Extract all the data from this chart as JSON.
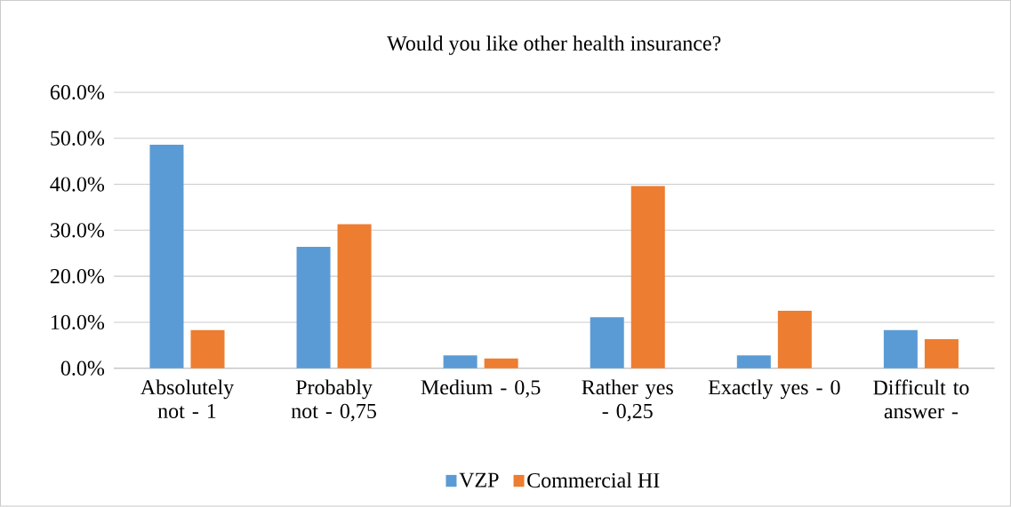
{
  "chart_data": {
    "type": "bar",
    "title": "Would you like other health insurance?",
    "categories": [
      "Absolutely not - 1",
      "Probably not - 0,75",
      "Medium - 0,5",
      "Rather yes - 0,25",
      "Exactly yes - 0",
      "Difficult to answer -"
    ],
    "series": [
      {
        "name": "VZP",
        "color": "#5b9bd5",
        "values": [
          48.6,
          26.4,
          2.8,
          11.1,
          2.8,
          8.3
        ]
      },
      {
        "name": "Commercial HI",
        "color": "#ed7d31",
        "values": [
          8.3,
          31.3,
          2.1,
          39.6,
          12.5,
          6.3
        ]
      }
    ],
    "ylim": [
      0,
      60
    ],
    "yticks": [
      {
        "value": 0,
        "label": "0.0%"
      },
      {
        "value": 10,
        "label": "10.0%"
      },
      {
        "value": 20,
        "label": "20.0%"
      },
      {
        "value": 30,
        "label": "30.0%"
      },
      {
        "value": 40,
        "label": "40.0%"
      },
      {
        "value": 50,
        "label": "50.0%"
      },
      {
        "value": 60,
        "label": "60.0%"
      }
    ],
    "grid": "y",
    "legend": "bottom"
  }
}
